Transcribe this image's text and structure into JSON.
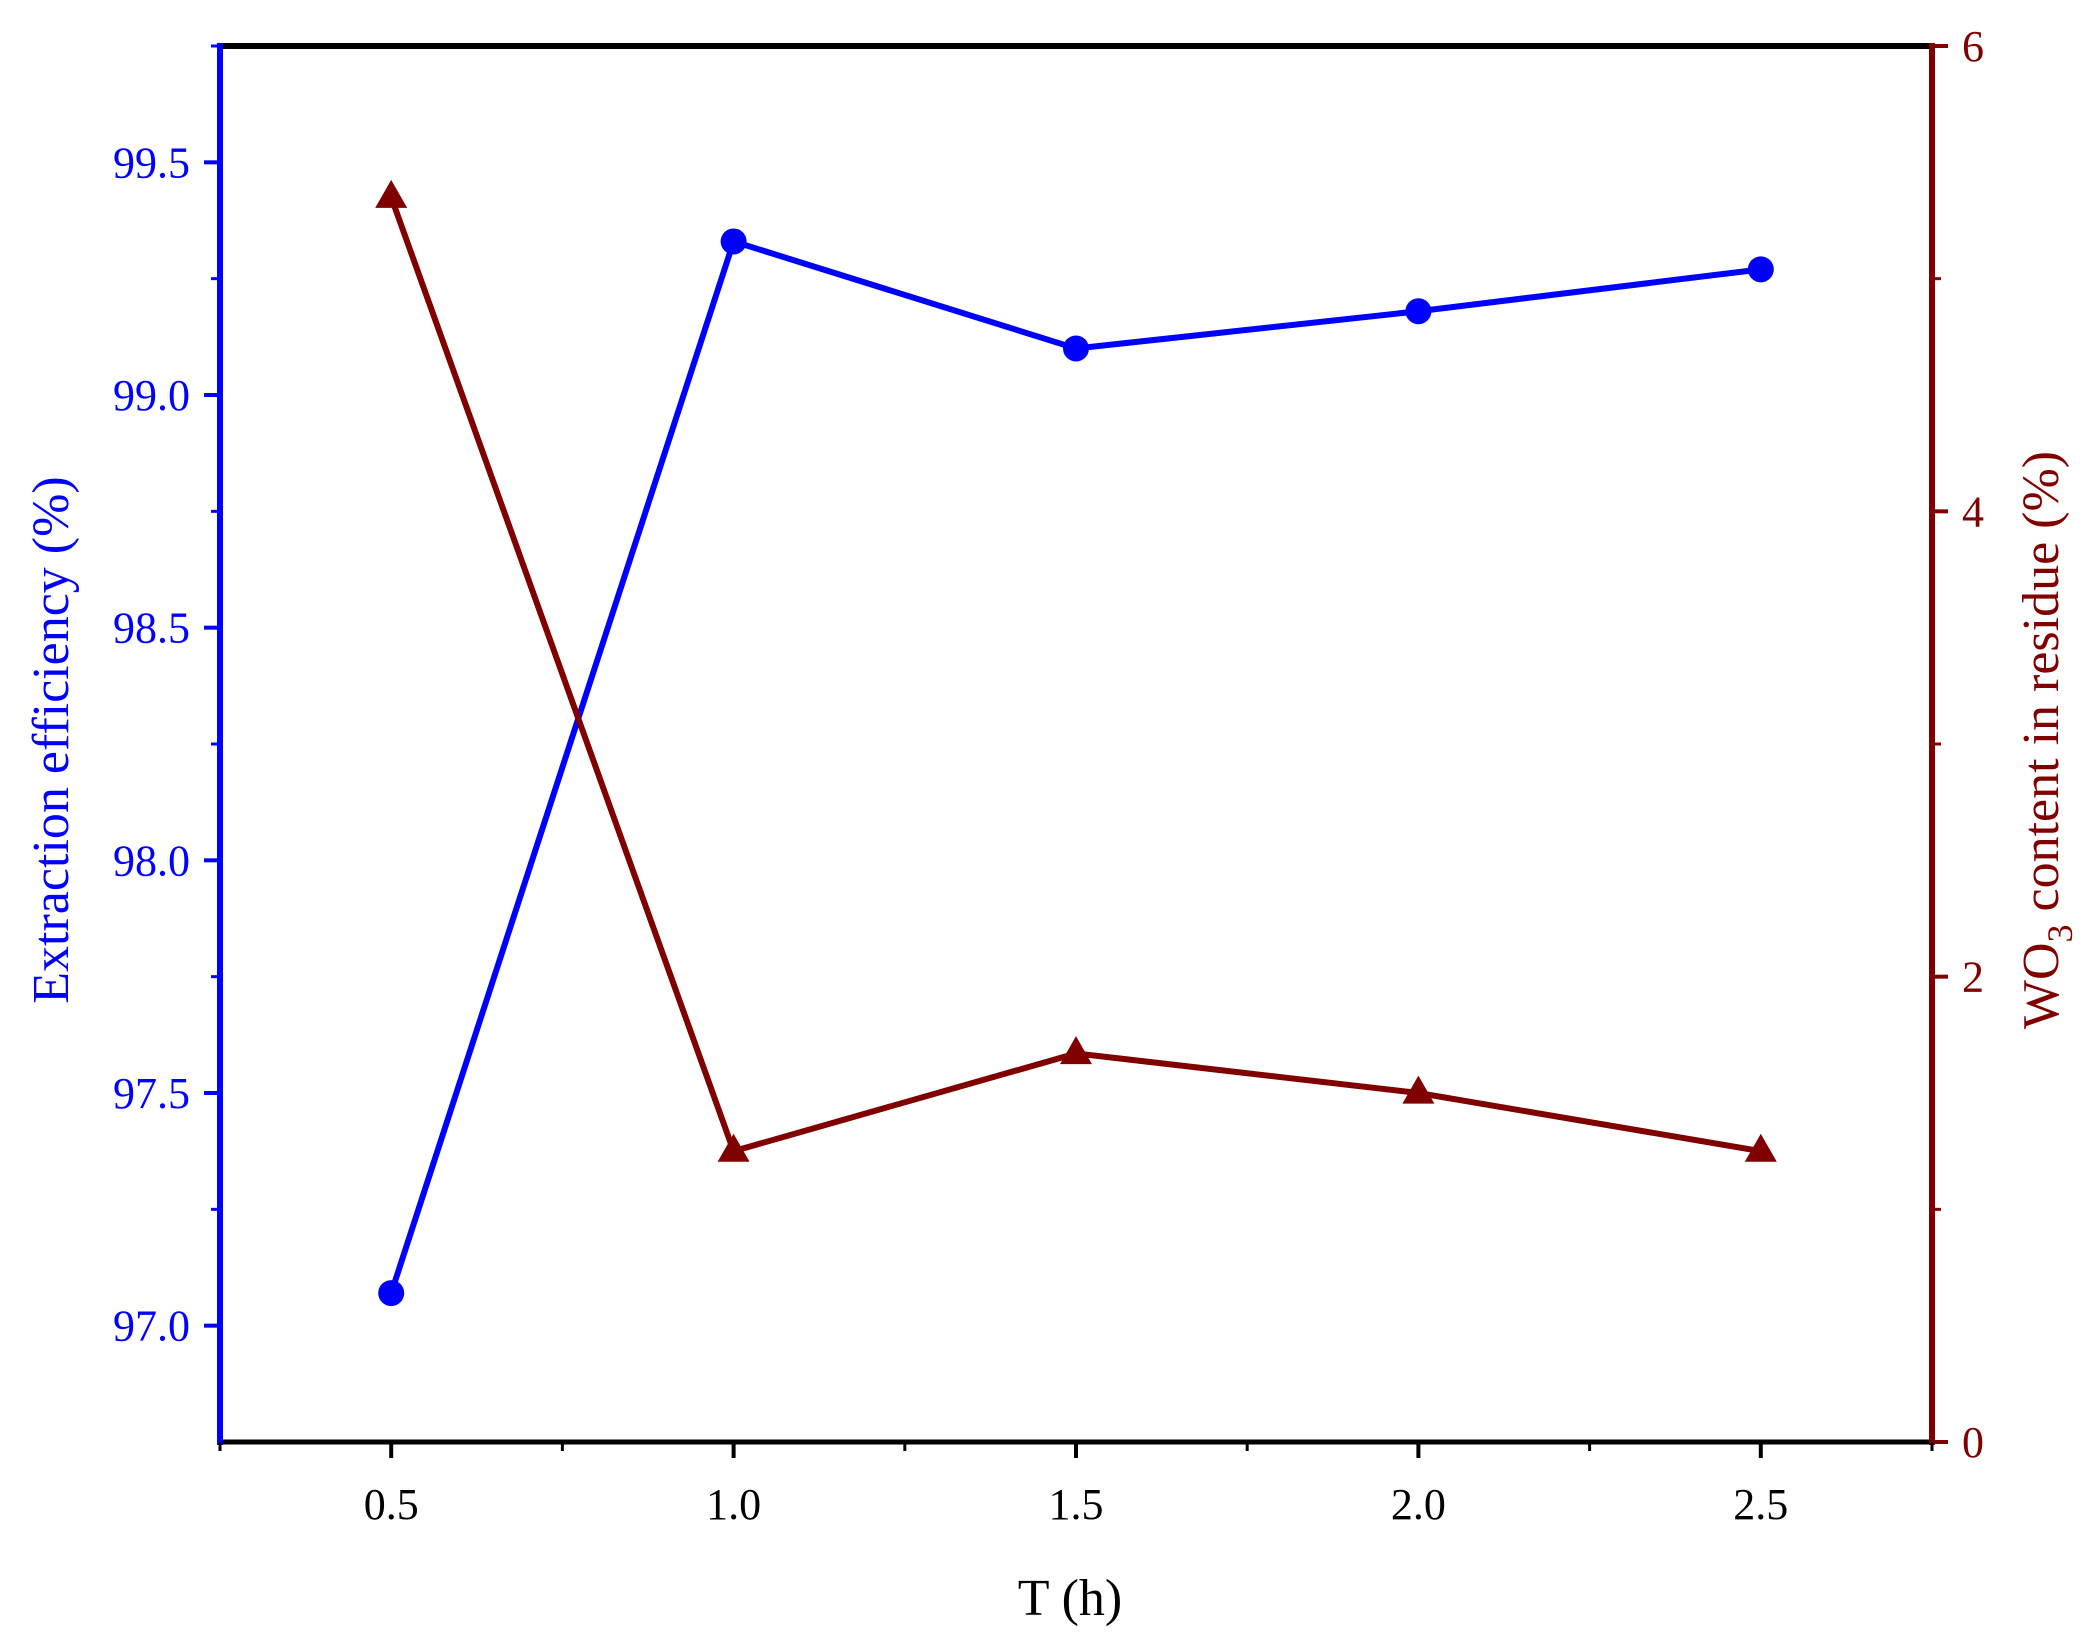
{
  "chart_data": {
    "type": "line",
    "x": [
      0.5,
      1.0,
      1.5,
      2.0,
      2.5
    ],
    "xlabel": "T (h)",
    "xlim": [
      0.25,
      2.75
    ],
    "xticks": [
      "0.5",
      "1.0",
      "1.5",
      "2.0",
      "2.5"
    ],
    "ylabel_left": "Extraction efficiency (%)",
    "ylim_left": [
      96.75,
      99.75
    ],
    "yticks_left": [
      "97.0",
      "97.5",
      "98.0",
      "98.5",
      "99.0",
      "99.5"
    ],
    "ylabel_right_main": "WO",
    "ylabel_right_sub": "3",
    "ylabel_right_rest": " content in residue (%)",
    "ylim_right": [
      0,
      6
    ],
    "yticks_right": [
      "0",
      "2",
      "4",
      "6"
    ],
    "series": [
      {
        "axis": "left",
        "marker": "circle",
        "color": "#0000ff",
        "values": [
          97.07,
          99.33,
          99.1,
          99.18,
          99.27
        ]
      },
      {
        "axis": "right",
        "marker": "triangle",
        "color": "#800000",
        "values": [
          5.35,
          1.25,
          1.67,
          1.5,
          1.25
        ]
      }
    ],
    "grid": false,
    "legend": "none"
  }
}
